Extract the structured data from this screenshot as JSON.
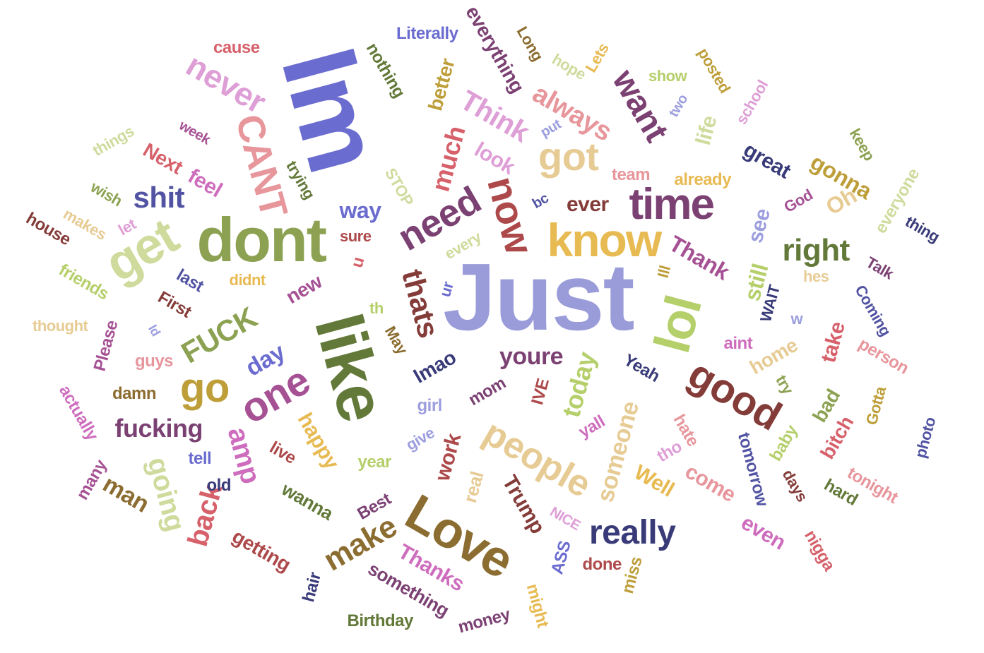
{
  "words": [
    {
      "text": "Just",
      "color": "#9a9cda"
    },
    {
      "text": "Im",
      "color": "#6b6ccf"
    },
    {
      "text": "like",
      "color": "#637939"
    },
    {
      "text": "dont",
      "color": "#8ca252"
    },
    {
      "text": "know",
      "color": "#e7ba52"
    },
    {
      "text": "time",
      "color": "#7b4173"
    },
    {
      "text": "Love",
      "color": "#8c6d31"
    },
    {
      "text": "lol",
      "color": "#b5cf6b"
    },
    {
      "text": "good",
      "color": "#843c39"
    },
    {
      "text": "people",
      "color": "#e7cb94"
    },
    {
      "text": "got",
      "color": "#e7cb94"
    },
    {
      "text": "need",
      "color": "#7b4173"
    },
    {
      "text": "now",
      "color": "#ad494a"
    },
    {
      "text": "get",
      "color": "#cedb9c"
    },
    {
      "text": "one",
      "color": "#a55194"
    },
    {
      "text": "really",
      "color": "#393b79"
    },
    {
      "text": "CANT",
      "color": "#e7969c"
    },
    {
      "text": "never",
      "color": "#de9ed6"
    },
    {
      "text": "want",
      "color": "#7b4173"
    },
    {
      "text": "right",
      "color": "#637939"
    },
    {
      "text": "go",
      "color": "#bd9e39"
    },
    {
      "text": "make",
      "color": "#8c6d31"
    },
    {
      "text": "shit",
      "color": "#5254a3"
    },
    {
      "text": "thats",
      "color": "#843c39"
    },
    {
      "text": "FUCK",
      "color": "#8ca252"
    },
    {
      "text": "amp",
      "color": "#ce6dbd"
    },
    {
      "text": "going",
      "color": "#cedb9c"
    },
    {
      "text": "youre",
      "color": "#7b4173"
    },
    {
      "text": "back",
      "color": "#d6616b"
    },
    {
      "text": "Think",
      "color": "#de9ed6"
    },
    {
      "text": "always",
      "color": "#e7969c"
    },
    {
      "text": "much",
      "color": "#d6616b"
    },
    {
      "text": "someone",
      "color": "#e7cb94"
    },
    {
      "text": "today",
      "color": "#b5cf6b"
    },
    {
      "text": "day",
      "color": "#6b6ccf"
    },
    {
      "text": "fucking",
      "color": "#7b4173"
    },
    {
      "text": "man",
      "color": "#8c6d31"
    },
    {
      "text": "Thank",
      "color": "#a55194"
    },
    {
      "text": "come",
      "color": "#e7969c"
    },
    {
      "text": "Trump",
      "color": "#843c39"
    },
    {
      "text": "feel",
      "color": "#ce6dbd"
    },
    {
      "text": "gonna",
      "color": "#bd9e39"
    },
    {
      "text": "see",
      "color": "#9c9ede"
    },
    {
      "text": "even",
      "color": "#ce6dbd"
    },
    {
      "text": "way",
      "color": "#6b6ccf"
    },
    {
      "text": "Thanks",
      "color": "#ce6dbd"
    },
    {
      "text": "still",
      "color": "#b5cf6b"
    },
    {
      "text": "happy",
      "color": "#e7ba52"
    },
    {
      "text": "Well",
      "color": "#e7ba52"
    },
    {
      "text": "great",
      "color": "#393b79"
    },
    {
      "text": "work",
      "color": "#ad494a"
    },
    {
      "text": "look",
      "color": "#de9ed6"
    },
    {
      "text": "take",
      "color": "#d6616b"
    },
    {
      "text": "life",
      "color": "#cedb9c"
    },
    {
      "text": "Next",
      "color": "#d6616b"
    },
    {
      "text": "lmao",
      "color": "#393b79"
    },
    {
      "text": "new",
      "color": "#a55194"
    },
    {
      "text": "better",
      "color": "#bd9e39"
    },
    {
      "text": "everything",
      "color": "#7b4173"
    },
    {
      "text": "getting",
      "color": "#ad494a"
    },
    {
      "text": "something",
      "color": "#7b4173"
    },
    {
      "text": "home",
      "color": "#e7cb94"
    },
    {
      "text": "wanna",
      "color": "#637939"
    },
    {
      "text": "tomorrow",
      "color": "#5254a3"
    },
    {
      "text": "real",
      "color": "#e7cb94"
    },
    {
      "text": "hate",
      "color": "#e7969c"
    },
    {
      "text": "cause",
      "color": "#d6616b"
    },
    {
      "text": "Literally",
      "color": "#6b6ccf"
    },
    {
      "text": "nothing",
      "color": "#637939"
    },
    {
      "text": "Long",
      "color": "#8c6d31"
    },
    {
      "text": "hope",
      "color": "#cedb9c"
    },
    {
      "text": "Lets",
      "color": "#e7ba52"
    },
    {
      "text": "show",
      "color": "#b5cf6b"
    },
    {
      "text": "posted",
      "color": "#bd9e39"
    },
    {
      "text": "school",
      "color": "#de9ed6"
    },
    {
      "text": "two",
      "color": "#9c9ede"
    },
    {
      "text": "put",
      "color": "#9c9ede"
    },
    {
      "text": "team",
      "color": "#e7969c"
    },
    {
      "text": "already",
      "color": "#e7ba52"
    },
    {
      "text": "God",
      "color": "#a55194"
    },
    {
      "text": "Oh",
      "color": "#e7cb94"
    },
    {
      "text": "keep",
      "color": "#8ca252"
    },
    {
      "text": "everyone",
      "color": "#cedb9c"
    },
    {
      "text": "thing",
      "color": "#393b79"
    },
    {
      "text": "things",
      "color": "#cedb9c"
    },
    {
      "text": "week",
      "color": "#a55194"
    },
    {
      "text": "trying",
      "color": "#637939"
    },
    {
      "text": "STOP",
      "color": "#cedb9c"
    },
    {
      "text": "bc",
      "color": "#5254a3"
    },
    {
      "text": "ever",
      "color": "#843c39"
    },
    {
      "text": "wish",
      "color": "#8ca252"
    },
    {
      "text": "makes",
      "color": "#e7cb94"
    },
    {
      "text": "let",
      "color": "#de9ed6"
    },
    {
      "text": "house",
      "color": "#843c39"
    },
    {
      "text": "sure",
      "color": "#ad494a"
    },
    {
      "text": "u",
      "color": "#d6616b"
    },
    {
      "text": "every",
      "color": "#cedb9c"
    },
    {
      "text": "hes",
      "color": "#e7cb94"
    },
    {
      "text": "Talk",
      "color": "#7b4173"
    },
    {
      "text": "Ill",
      "color": "#bd9e39"
    },
    {
      "text": "friends",
      "color": "#b5cf6b"
    },
    {
      "text": "last",
      "color": "#5254a3"
    },
    {
      "text": "didnt",
      "color": "#e7ba52"
    },
    {
      "text": "First",
      "color": "#843c39"
    },
    {
      "text": "ur",
      "color": "#6b6ccf"
    },
    {
      "text": "th",
      "color": "#b5cf6b"
    },
    {
      "text": "WAIT",
      "color": "#393b79"
    },
    {
      "text": "Coming",
      "color": "#5254a3"
    },
    {
      "text": "w",
      "color": "#9c9ede"
    },
    {
      "text": "thought",
      "color": "#e7cb94"
    },
    {
      "text": "Id",
      "color": "#9c9ede"
    },
    {
      "text": "Please",
      "color": "#a55194"
    },
    {
      "text": "May",
      "color": "#8c6d31"
    },
    {
      "text": "aint",
      "color": "#ce6dbd"
    },
    {
      "text": "person",
      "color": "#e7969c"
    },
    {
      "text": "Yeah",
      "color": "#393b79"
    },
    {
      "text": "guys",
      "color": "#e7969c"
    },
    {
      "text": "try",
      "color": "#8ca252"
    },
    {
      "text": "actually",
      "color": "#ce6dbd"
    },
    {
      "text": "damn",
      "color": "#8c6d31"
    },
    {
      "text": "IVE",
      "color": "#ad494a"
    },
    {
      "text": "mom",
      "color": "#7b4173"
    },
    {
      "text": "girl",
      "color": "#9c9ede"
    },
    {
      "text": "bad",
      "color": "#8ca252"
    },
    {
      "text": "Gotta",
      "color": "#bd9e39"
    },
    {
      "text": "photo",
      "color": "#5254a3"
    },
    {
      "text": "yall",
      "color": "#ce6dbd"
    },
    {
      "text": "give",
      "color": "#9c9ede"
    },
    {
      "text": "bitch",
      "color": "#d6616b"
    },
    {
      "text": "baby",
      "color": "#b5cf6b"
    },
    {
      "text": "tell",
      "color": "#6b6ccf"
    },
    {
      "text": "live",
      "color": "#ad494a"
    },
    {
      "text": "year",
      "color": "#b5cf6b"
    },
    {
      "text": "tho",
      "color": "#de9ed6"
    },
    {
      "text": "tonight",
      "color": "#e7969c"
    },
    {
      "text": "many",
      "color": "#a55194"
    },
    {
      "text": "old",
      "color": "#393b79"
    },
    {
      "text": "days",
      "color": "#843c39"
    },
    {
      "text": "hard",
      "color": "#637939"
    },
    {
      "text": "Best",
      "color": "#7b4173"
    },
    {
      "text": "NICE",
      "color": "#de9ed6"
    },
    {
      "text": "ASS",
      "color": "#6b6ccf"
    },
    {
      "text": "done",
      "color": "#ad494a"
    },
    {
      "text": "nigga",
      "color": "#d6616b"
    },
    {
      "text": "miss",
      "color": "#bd9e39"
    },
    {
      "text": "hair",
      "color": "#393b79"
    },
    {
      "text": "might",
      "color": "#e7ba52"
    },
    {
      "text": "money",
      "color": "#7b4173"
    },
    {
      "text": "Birthday",
      "color": "#637939"
    }
  ]
}
